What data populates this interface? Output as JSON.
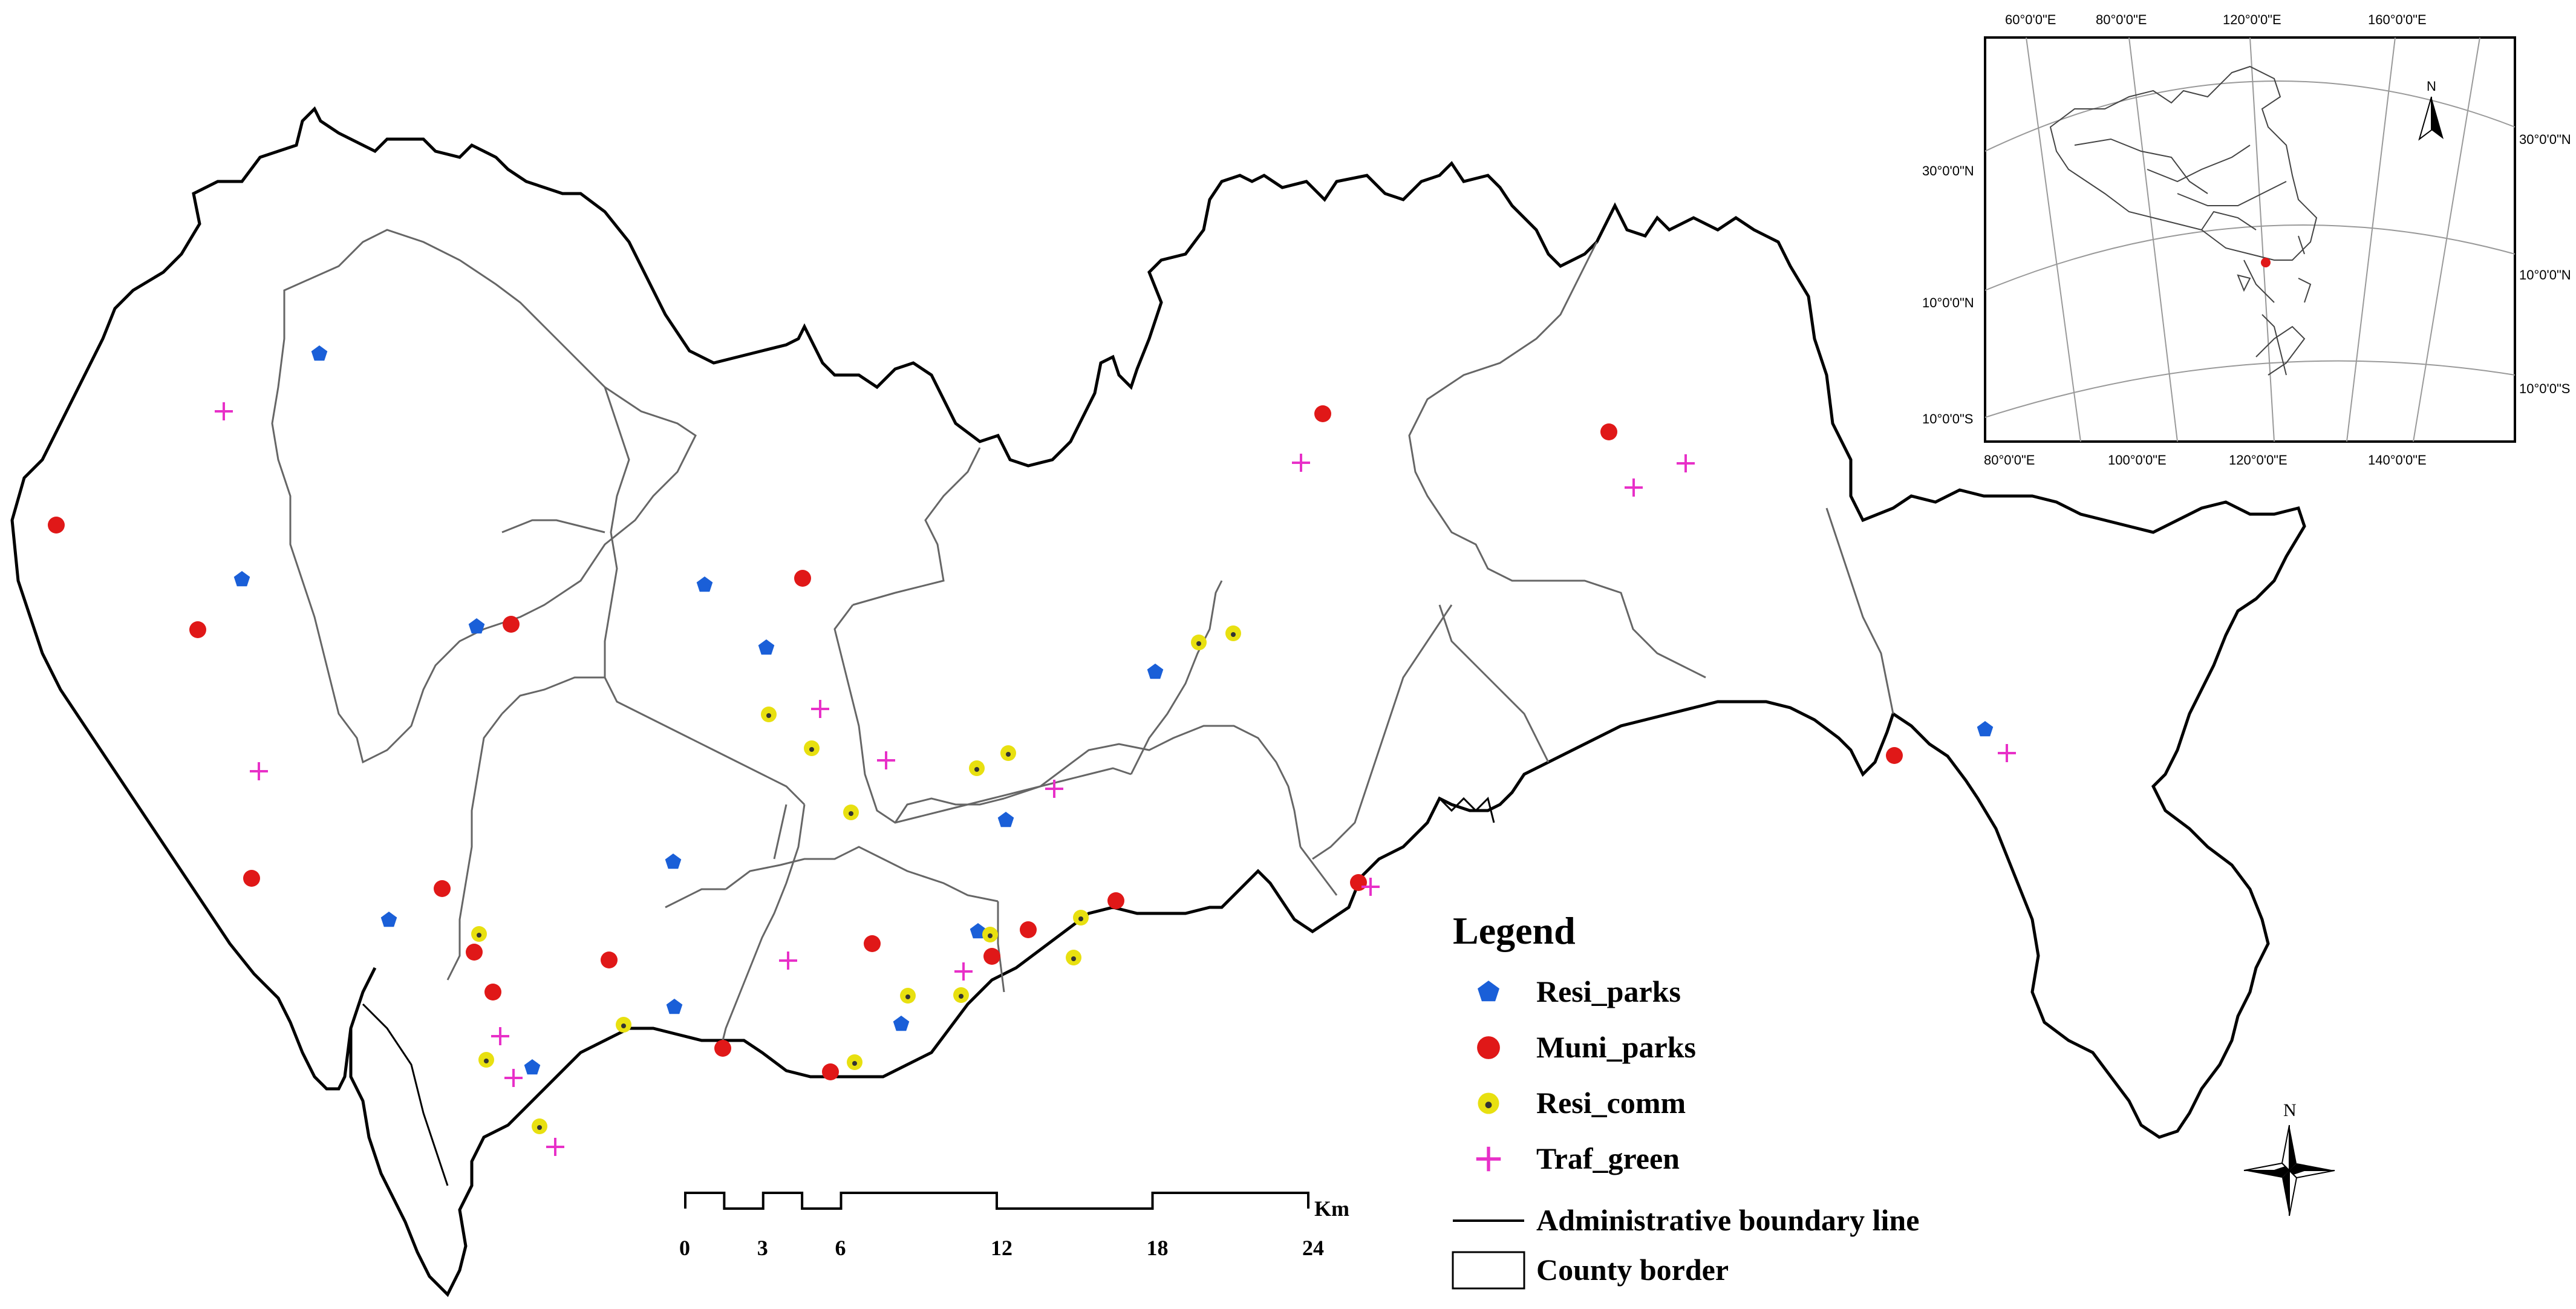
{
  "legend": {
    "title": "Legend",
    "items": [
      {
        "key": "resi_parks",
        "label": "Resi_parks",
        "color": "#1a5fd8",
        "symbol": "pentagon"
      },
      {
        "key": "muni_parks",
        "label": "Muni_parks",
        "color": "#e01818",
        "symbol": "circle"
      },
      {
        "key": "resi_comm",
        "label": "Resi_comm",
        "color": "#e8e010",
        "symbol": "dot-circle"
      },
      {
        "key": "traf_green",
        "label": "Traf_green",
        "color": "#e830c8",
        "symbol": "plus"
      }
    ],
    "boundary_label": "Administrative boundary line",
    "county_label": "County border"
  },
  "scale_bar": {
    "unit": "Km",
    "ticks": [
      "0",
      "3",
      "6",
      "12",
      "18",
      "24"
    ]
  },
  "north_arrow": {
    "label": "N"
  },
  "inset": {
    "north_label": "N",
    "top_lon_labels": [
      "60°0'0\"E",
      "80°0'0\"E",
      "120°0'0\"E",
      "160°0'0\"E"
    ],
    "bottom_lon_labels": [
      "80°0'0\"E",
      "100°0'0\"E",
      "120°0'0\"E",
      "140°0'0\"E"
    ],
    "left_lat_labels": [
      "30°0'0\"N",
      "10°0'0\"N",
      "10°0'0\"S"
    ],
    "right_lat_labels": [
      "30°0'0\"N",
      "10°0'0\"N",
      "10°0'0\"S"
    ]
  }
}
